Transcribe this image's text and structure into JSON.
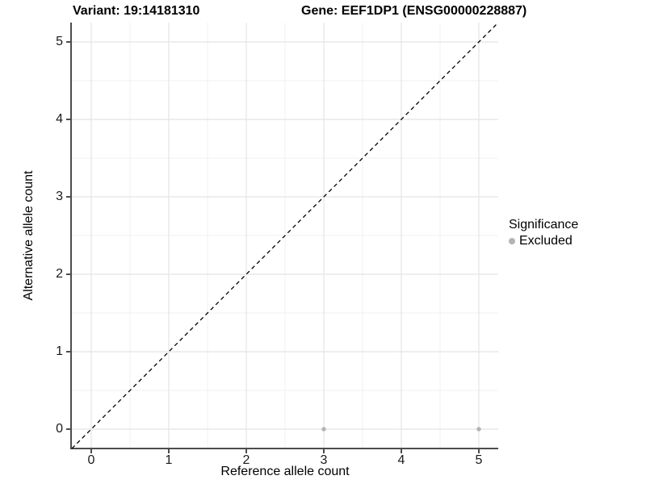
{
  "titles": {
    "variant": "Variant: 19:14181310",
    "gene": "Gene: EEF1DP1 (ENSG00000228887)"
  },
  "chart_data": {
    "type": "scatter",
    "title_left": "Variant: 19:14181310",
    "title_right": "Gene: EEF1DP1 (ENSG00000228887)",
    "xlabel": "Reference allele count",
    "ylabel": "Alternative allele count",
    "xlim": [
      -0.25,
      5.25
    ],
    "ylim": [
      -0.25,
      5.25
    ],
    "x_ticks": [
      0,
      1,
      2,
      3,
      4,
      5
    ],
    "y_ticks": [
      0,
      1,
      2,
      3,
      4,
      5
    ],
    "x_minor_ticks": [
      0.5,
      1.5,
      2.5,
      3.5,
      4.5
    ],
    "y_minor_ticks": [
      0.5,
      1.5,
      2.5,
      3.5,
      4.5
    ],
    "grid": true,
    "series": [
      {
        "name": "Excluded",
        "points": [
          {
            "x": 3,
            "y": 0
          },
          {
            "x": 5,
            "y": 0
          }
        ],
        "color": "#b3b3b3"
      }
    ],
    "reference_line": {
      "kind": "identity",
      "style": "dashed",
      "color": "#000000"
    },
    "legend": {
      "title": "Significance",
      "position": "right",
      "entries": [
        {
          "label": "Excluded",
          "color": "#b3b3b3",
          "marker": "circle"
        }
      ]
    },
    "colors": {
      "grid_major": "#e4e4e4",
      "grid_minor": "#f1f1f1",
      "axis_line": "#4d4d4d",
      "tick_mark": "#4d4d4d",
      "point": "#b3b3b3"
    }
  }
}
